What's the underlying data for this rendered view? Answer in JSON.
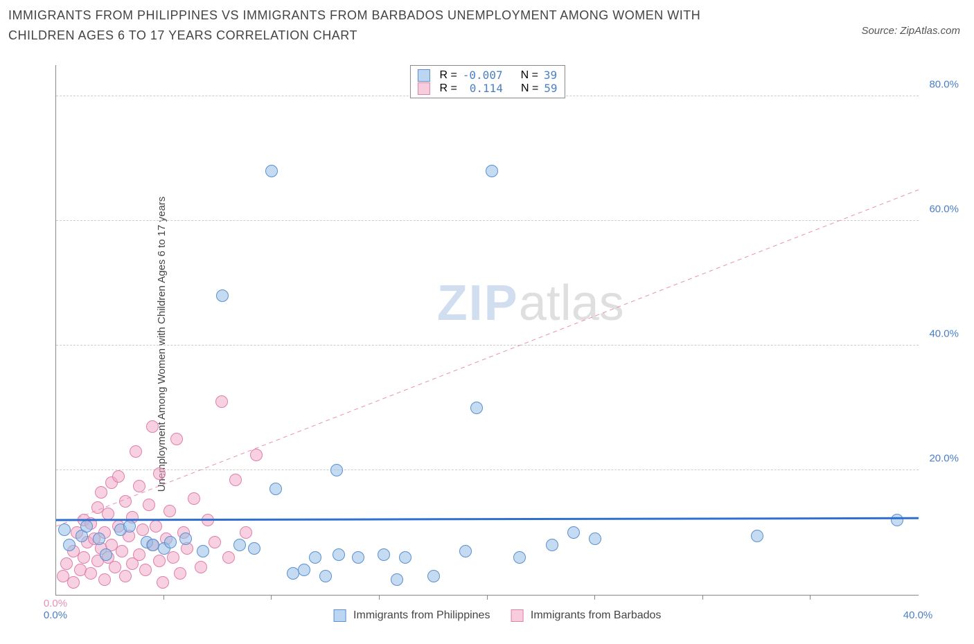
{
  "title": "IMMIGRANTS FROM PHILIPPINES VS IMMIGRANTS FROM BARBADOS UNEMPLOYMENT AMONG WOMEN WITH CHILDREN AGES 6 TO 17 YEARS CORRELATION CHART",
  "source_label": "Source: ZipAtlas.com",
  "ylabel": "Unemployment Among Women with Children Ages 6 to 17 years",
  "watermark": {
    "part1": "ZIP",
    "part2": "atlas"
  },
  "chart": {
    "type": "scatter",
    "background_color": "#ffffff",
    "grid_color": "#cccccc",
    "axis_color": "#888888",
    "series": [
      {
        "name": "Immigrants from Philippines",
        "swatch_fill": "#bcd5f0",
        "swatch_border": "#5a8fd0",
        "point_fill": "rgba(150,190,230,0.55)",
        "point_border": "#5a8fd0",
        "point_radius": 9,
        "r_label": "R =",
        "r_value": "-0.007",
        "n_label": "N =",
        "n_value": "39",
        "x_domain": [
          0,
          40
        ],
        "y_domain": [
          0,
          85
        ],
        "trend": {
          "color": "#2f6fd0",
          "width": 3,
          "dash": "none",
          "y_at_x0": 12.0,
          "y_at_xmax": 12.3
        },
        "points": [
          {
            "x": 0.4,
            "y": 10.5
          },
          {
            "x": 0.6,
            "y": 8.0
          },
          {
            "x": 1.2,
            "y": 9.5
          },
          {
            "x": 1.4,
            "y": 11.0
          },
          {
            "x": 2.0,
            "y": 9.0
          },
          {
            "x": 2.3,
            "y": 6.5
          },
          {
            "x": 3.0,
            "y": 10.5
          },
          {
            "x": 3.4,
            "y": 11.0
          },
          {
            "x": 4.2,
            "y": 8.5
          },
          {
            "x": 4.5,
            "y": 8.0
          },
          {
            "x": 5.0,
            "y": 7.5
          },
          {
            "x": 5.3,
            "y": 8.5
          },
          {
            "x": 6.0,
            "y": 9.0
          },
          {
            "x": 6.8,
            "y": 7.0
          },
          {
            "x": 7.7,
            "y": 48.0
          },
          {
            "x": 8.5,
            "y": 8.0
          },
          {
            "x": 9.2,
            "y": 7.5
          },
          {
            "x": 10.0,
            "y": 68.0
          },
          {
            "x": 10.2,
            "y": 17.0
          },
          {
            "x": 11.0,
            "y": 3.5
          },
          {
            "x": 11.5,
            "y": 4.0
          },
          {
            "x": 12.0,
            "y": 6.0
          },
          {
            "x": 12.5,
            "y": 3.0
          },
          {
            "x": 13.0,
            "y": 20.0
          },
          {
            "x": 13.1,
            "y": 6.5
          },
          {
            "x": 14.0,
            "y": 6.0
          },
          {
            "x": 15.2,
            "y": 6.5
          },
          {
            "x": 15.8,
            "y": 2.5
          },
          {
            "x": 16.2,
            "y": 6.0
          },
          {
            "x": 17.5,
            "y": 3.0
          },
          {
            "x": 19.0,
            "y": 7.0
          },
          {
            "x": 19.5,
            "y": 30.0
          },
          {
            "x": 20.2,
            "y": 68.0
          },
          {
            "x": 21.5,
            "y": 6.0
          },
          {
            "x": 23.0,
            "y": 8.0
          },
          {
            "x": 24.0,
            "y": 10.0
          },
          {
            "x": 25.0,
            "y": 9.0
          },
          {
            "x": 32.5,
            "y": 9.5
          },
          {
            "x": 39.0,
            "y": 12.0
          }
        ]
      },
      {
        "name": "Immigrants from Barbados",
        "swatch_fill": "#f7cddd",
        "swatch_border": "#e07fa8",
        "point_fill": "rgba(240,170,200,0.55)",
        "point_border": "#e07fa8",
        "point_radius": 9,
        "r_label": "R =",
        "r_value": "0.114",
        "n_label": "N =",
        "n_value": "59",
        "x_domain": [
          0,
          2.5
        ],
        "y_domain": [
          0,
          85
        ],
        "trend": {
          "color": "#e890b5",
          "width": 1,
          "dash": "6,5",
          "y_at_x0": 11.0,
          "y_at_xmax": 65.0
        },
        "points": [
          {
            "x": 0.02,
            "y": 3.0
          },
          {
            "x": 0.03,
            "y": 5.0
          },
          {
            "x": 0.05,
            "y": 2.0
          },
          {
            "x": 0.05,
            "y": 7.0
          },
          {
            "x": 0.06,
            "y": 10.0
          },
          {
            "x": 0.07,
            "y": 4.0
          },
          {
            "x": 0.08,
            "y": 12.0
          },
          {
            "x": 0.08,
            "y": 6.0
          },
          {
            "x": 0.09,
            "y": 8.5
          },
          {
            "x": 0.1,
            "y": 11.5
          },
          {
            "x": 0.1,
            "y": 3.5
          },
          {
            "x": 0.11,
            "y": 9.0
          },
          {
            "x": 0.12,
            "y": 14.0
          },
          {
            "x": 0.12,
            "y": 5.5
          },
          {
            "x": 0.13,
            "y": 7.5
          },
          {
            "x": 0.13,
            "y": 16.5
          },
          {
            "x": 0.14,
            "y": 10.0
          },
          {
            "x": 0.14,
            "y": 2.5
          },
          {
            "x": 0.15,
            "y": 13.0
          },
          {
            "x": 0.15,
            "y": 6.0
          },
          {
            "x": 0.16,
            "y": 18.0
          },
          {
            "x": 0.16,
            "y": 8.0
          },
          {
            "x": 0.17,
            "y": 4.5
          },
          {
            "x": 0.18,
            "y": 11.0
          },
          {
            "x": 0.18,
            "y": 19.0
          },
          {
            "x": 0.19,
            "y": 7.0
          },
          {
            "x": 0.2,
            "y": 3.0
          },
          {
            "x": 0.2,
            "y": 15.0
          },
          {
            "x": 0.21,
            "y": 9.5
          },
          {
            "x": 0.22,
            "y": 5.0
          },
          {
            "x": 0.22,
            "y": 12.5
          },
          {
            "x": 0.23,
            "y": 23.0
          },
          {
            "x": 0.24,
            "y": 6.5
          },
          {
            "x": 0.24,
            "y": 17.5
          },
          {
            "x": 0.25,
            "y": 10.5
          },
          {
            "x": 0.26,
            "y": 4.0
          },
          {
            "x": 0.27,
            "y": 14.5
          },
          {
            "x": 0.28,
            "y": 8.0
          },
          {
            "x": 0.28,
            "y": 27.0
          },
          {
            "x": 0.29,
            "y": 11.0
          },
          {
            "x": 0.3,
            "y": 5.5
          },
          {
            "x": 0.3,
            "y": 19.5
          },
          {
            "x": 0.31,
            "y": 2.0
          },
          {
            "x": 0.32,
            "y": 9.0
          },
          {
            "x": 0.33,
            "y": 13.5
          },
          {
            "x": 0.34,
            "y": 6.0
          },
          {
            "x": 0.35,
            "y": 25.0
          },
          {
            "x": 0.36,
            "y": 3.5
          },
          {
            "x": 0.37,
            "y": 10.0
          },
          {
            "x": 0.38,
            "y": 7.5
          },
          {
            "x": 0.4,
            "y": 15.5
          },
          {
            "x": 0.42,
            "y": 4.5
          },
          {
            "x": 0.44,
            "y": 12.0
          },
          {
            "x": 0.46,
            "y": 8.5
          },
          {
            "x": 0.48,
            "y": 31.0
          },
          {
            "x": 0.5,
            "y": 6.0
          },
          {
            "x": 0.52,
            "y": 18.5
          },
          {
            "x": 0.55,
            "y": 10.0
          },
          {
            "x": 0.58,
            "y": 22.5
          }
        ]
      }
    ],
    "y_ticks": [
      {
        "v": 20,
        "label": "20.0%"
      },
      {
        "v": 40,
        "label": "40.0%"
      },
      {
        "v": 60,
        "label": "60.0%"
      },
      {
        "v": 80,
        "label": "80.0%"
      }
    ],
    "x_ticks_blue": [
      {
        "v": 0,
        "label": "0.0%"
      },
      {
        "v": 40,
        "label": "40.0%"
      }
    ],
    "x_ticks_pink": [
      {
        "v": 0,
        "label": "0.0%"
      }
    ],
    "x_marker_positions": [
      5,
      10,
      15,
      20,
      25,
      30,
      35
    ]
  }
}
